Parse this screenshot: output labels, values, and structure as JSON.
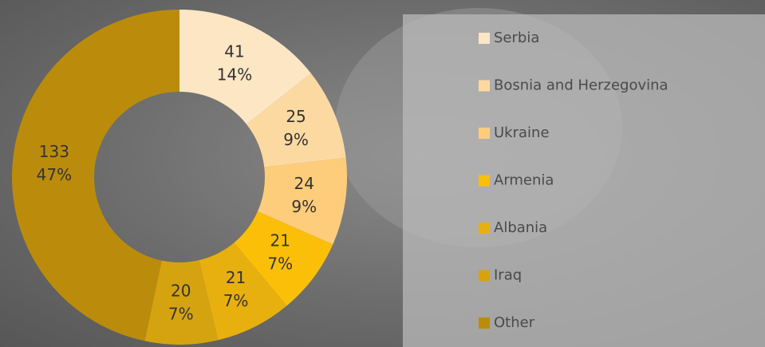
{
  "chart_data": {
    "type": "donut",
    "categories": [
      "Serbia",
      "Bosnia and Herzegovina",
      "Ukraine",
      "Armenia",
      "Albania",
      "Iraq",
      "Other"
    ],
    "values": [
      41,
      25,
      24,
      21,
      21,
      20,
      133
    ],
    "percent_labels": [
      "14%",
      "9%",
      "9%",
      "7%",
      "7%",
      "7%",
      "47%"
    ],
    "colors": [
      "#fde6c4",
      "#fdd9a2",
      "#fdcd7b",
      "#fbbf08",
      "#e8b00e",
      "#d6a310",
      "#bb8c0b"
    ],
    "legend": "right"
  }
}
